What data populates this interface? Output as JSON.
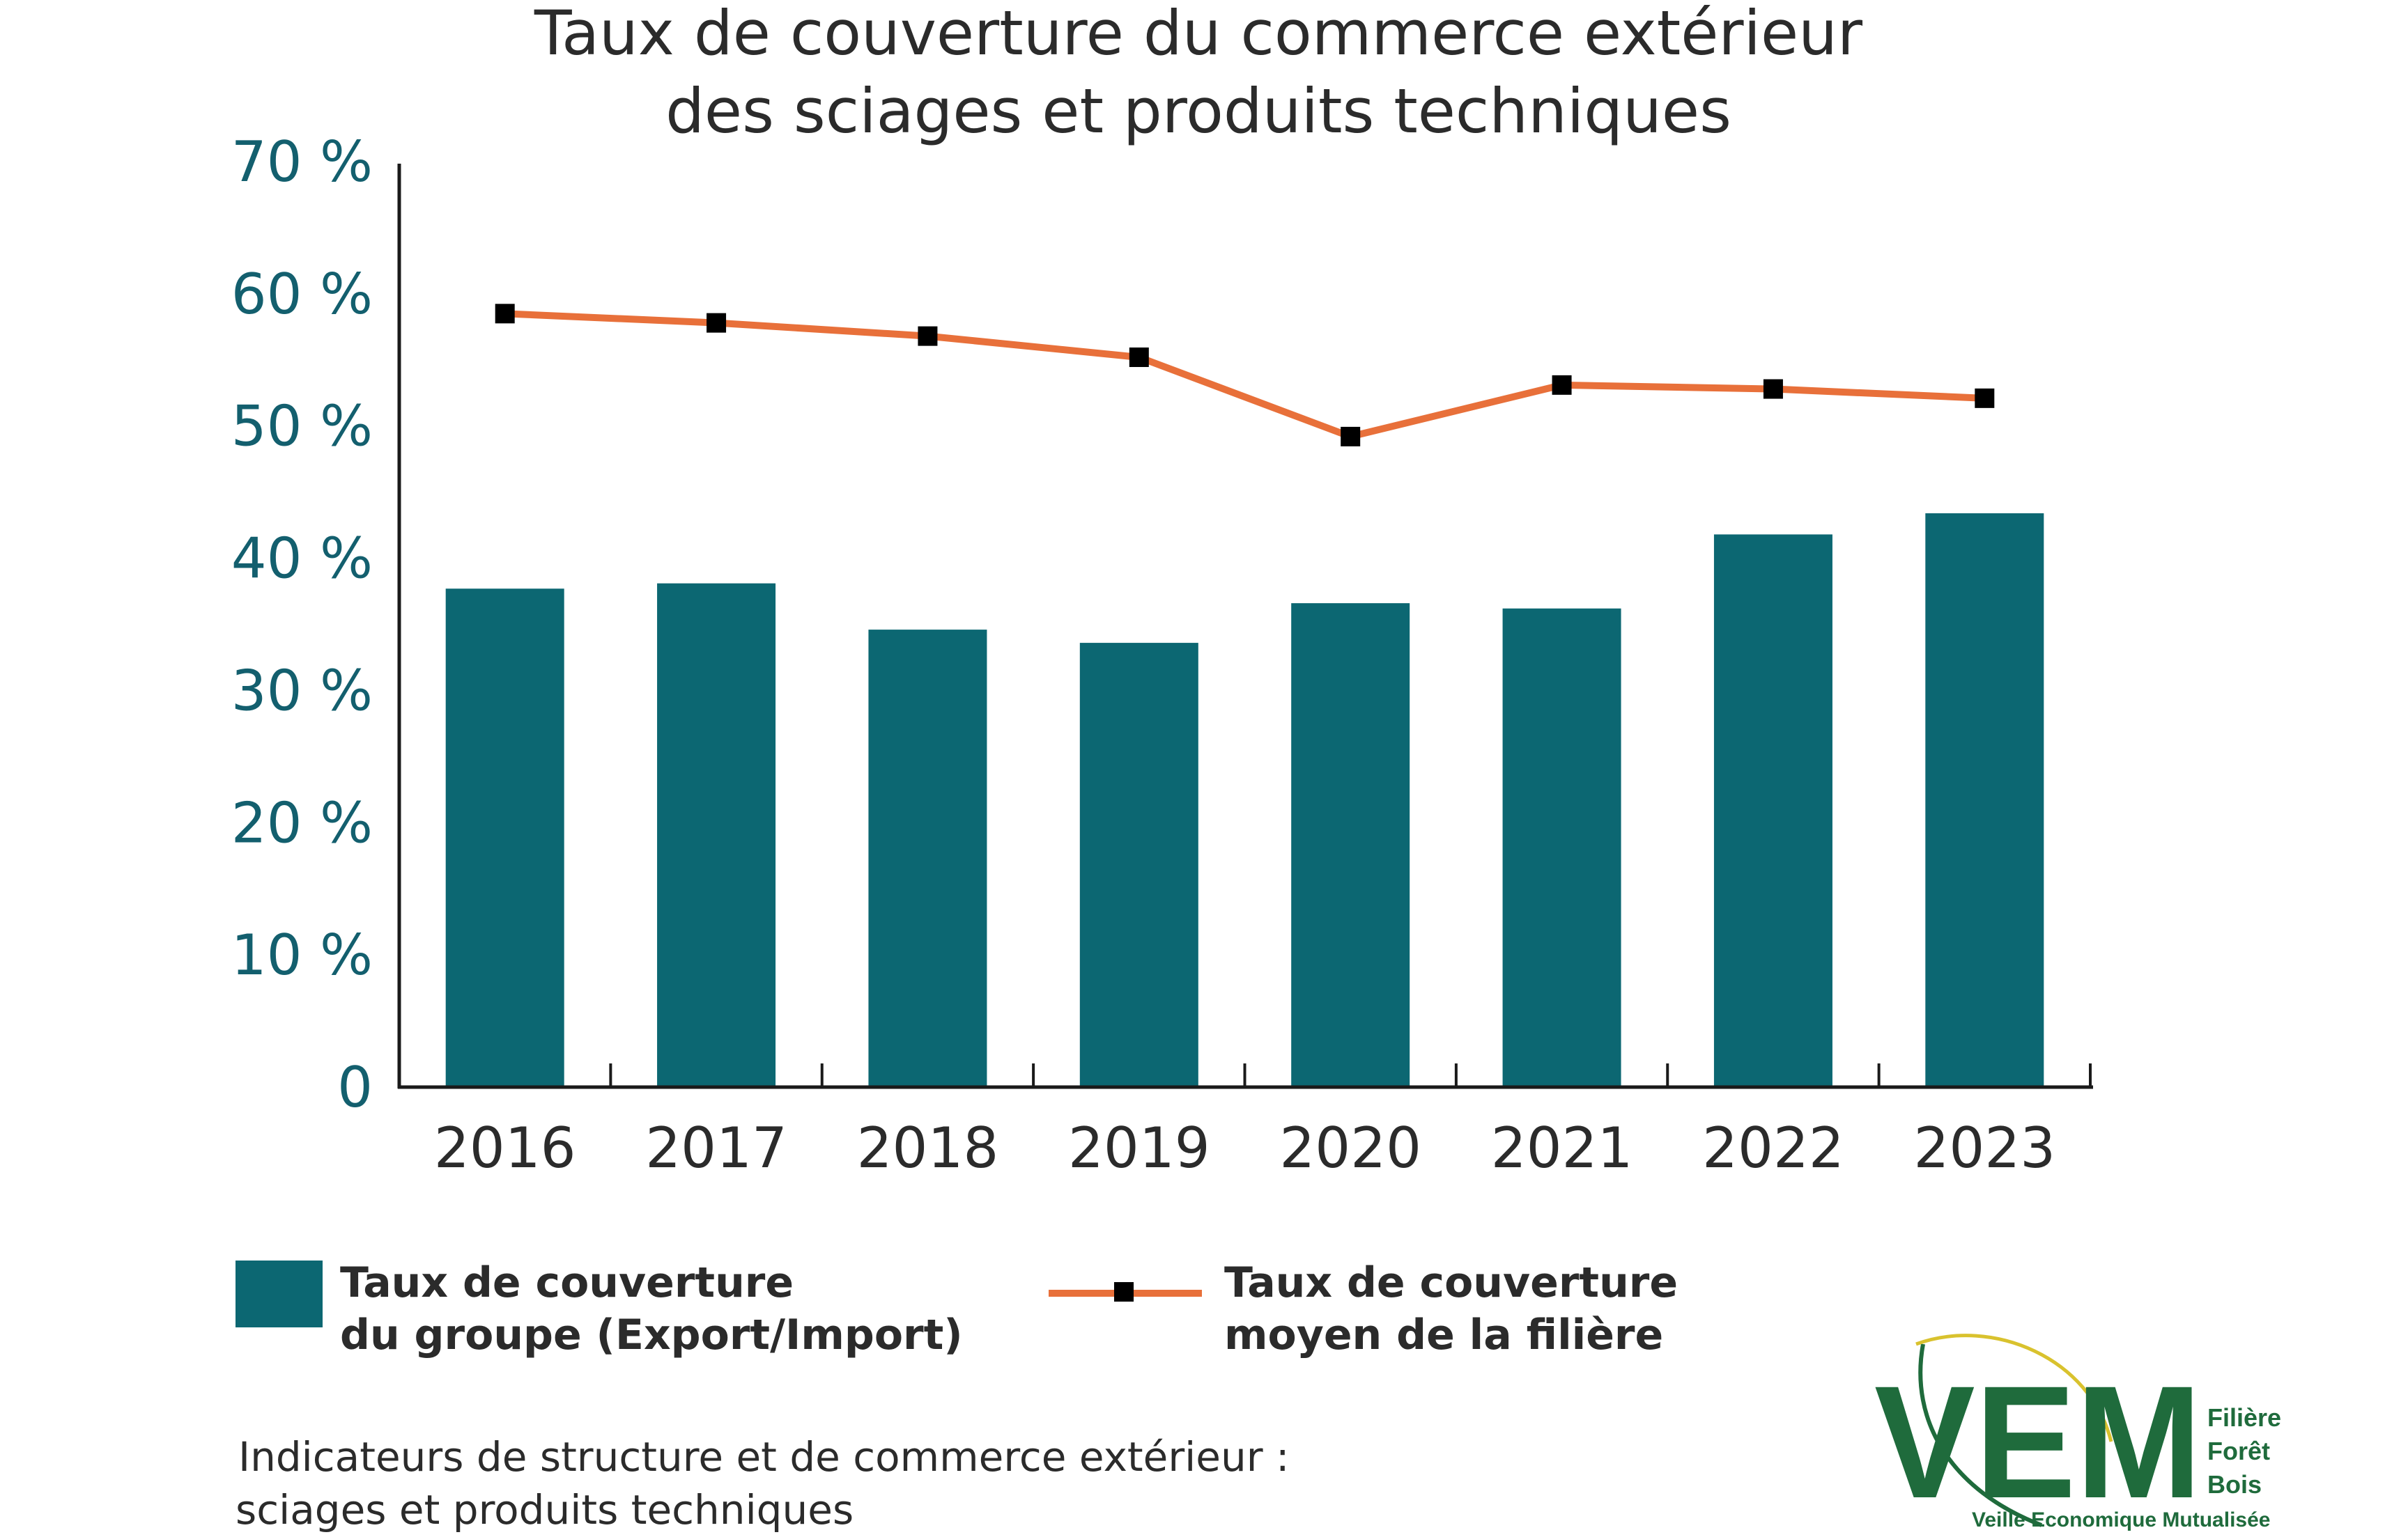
{
  "chart_data": {
    "type": "bar",
    "title_lines": [
      "Taux de couverture du commerce extérieur",
      "des sciages et produits techniques"
    ],
    "categories": [
      "2016",
      "2017",
      "2018",
      "2019",
      "2020",
      "2021",
      "2022",
      "2023"
    ],
    "y_tick_labels": [
      "0",
      "10 %",
      "20 %",
      "30 %",
      "40 %",
      "50 %",
      "60 %",
      "70 %"
    ],
    "ylim": [
      0,
      70
    ],
    "grid": false,
    "series": [
      {
        "name": "Taux de couverture du groupe (Export/Import)",
        "type": "bar",
        "color": "#0c6772",
        "values": [
          37.7,
          38.1,
          34.6,
          33.6,
          36.6,
          36.2,
          41.8,
          43.4
        ]
      },
      {
        "name": "Taux de couverture moyen de la filière",
        "type": "line",
        "color": "#e8703a",
        "marker_color": "#000000",
        "values": [
          58.5,
          57.8,
          56.8,
          55.2,
          49.2,
          53.1,
          52.8,
          52.1
        ]
      }
    ],
    "legend": {
      "position": "bottom",
      "bar_label_lines": [
        "Taux de couverture",
        "du groupe (Export/Import)"
      ],
      "line_label_lines": [
        "Taux de couverture",
        "moyen de la filière"
      ]
    }
  },
  "caption": {
    "lines": [
      "Indicateurs de structure et de commerce extérieur :",
      "sciages et produits techniques"
    ]
  },
  "logo": {
    "letters": "VEM",
    "line1": "Filière",
    "line2": "Forêt",
    "line3": "Bois",
    "tagline": "Veille Economique Mutualisée",
    "color": "#1f6b3c",
    "accent": "#d9c22e"
  }
}
